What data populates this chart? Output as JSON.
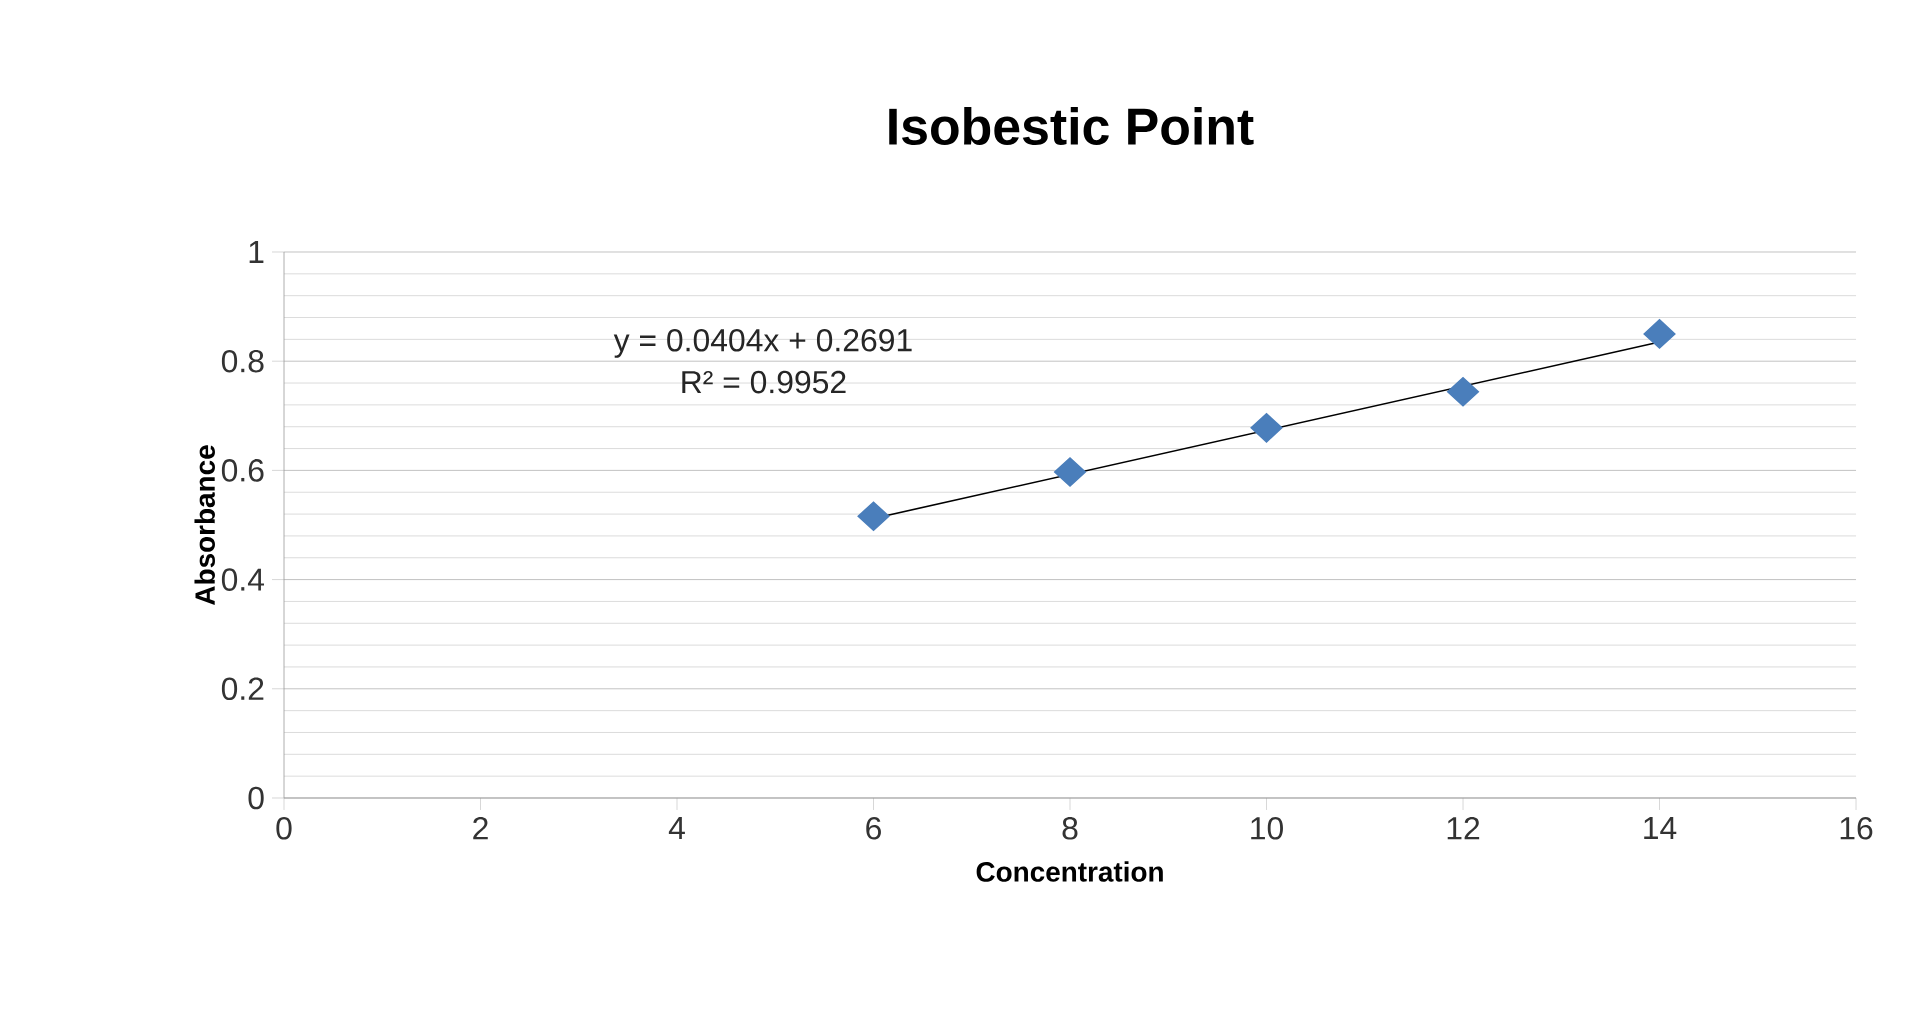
{
  "chart_data": {
    "type": "scatter",
    "title": "Isobestic Point",
    "xlabel": "Concentration",
    "ylabel": "Absorbance",
    "xlim": [
      0,
      16
    ],
    "xticks": [
      0,
      2,
      4,
      6,
      8,
      10,
      12,
      14,
      16
    ],
    "ylim": [
      0,
      1
    ],
    "yticks": [
      0,
      0.2,
      0.4,
      0.6,
      0.8,
      1
    ],
    "grid": "y",
    "annotations": [
      "y = 0.0404x + 0.2691",
      "R² = 0.9952"
    ],
    "series": [
      {
        "color": "#4a7ebb",
        "marker": "diamond",
        "x": [
          6,
          8,
          10,
          12,
          14
        ],
        "values": [
          0.516,
          0.597,
          0.678,
          0.744,
          0.85
        ]
      },
      {
        "type": "line",
        "color": "#000000",
        "marker": "none",
        "x": [
          6,
          14
        ],
        "values": [
          0.512,
          0.835
        ]
      }
    ]
  }
}
